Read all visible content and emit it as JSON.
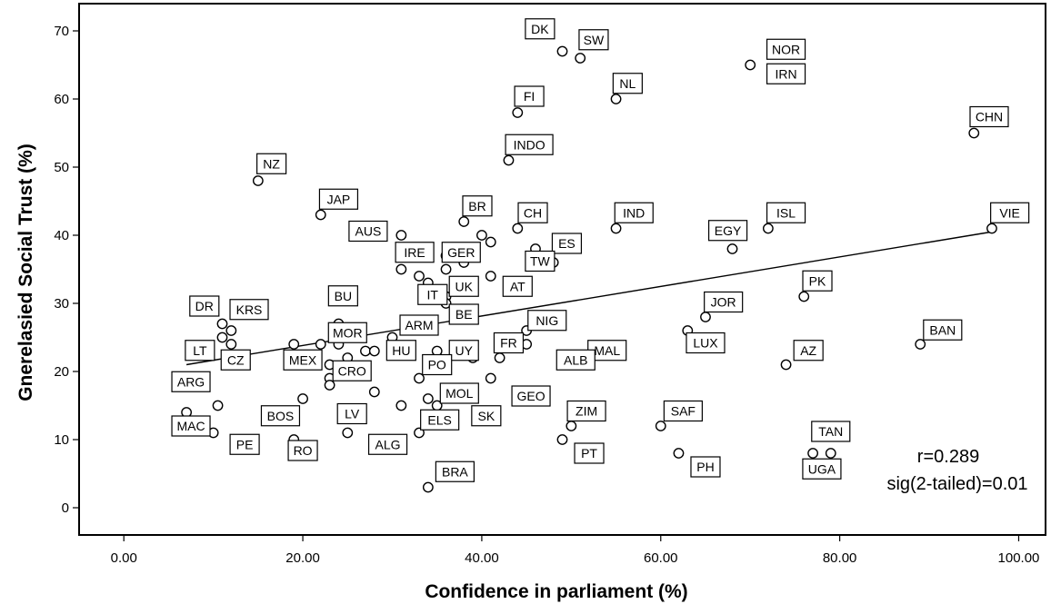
{
  "chart_data": {
    "type": "scatter",
    "xlabel": "Confidence  in parliament (%)",
    "ylabel": "Gnerelasied Social Trust (%)",
    "xlim": [
      -5,
      103
    ],
    "ylim": [
      -4,
      74
    ],
    "x_ticks": [
      0,
      20,
      40,
      60,
      80,
      100
    ],
    "x_tick_labels": [
      "0.00",
      "20.00",
      "40.00",
      "60.00",
      "80.00",
      "100.00"
    ],
    "y_ticks": [
      0,
      10,
      20,
      30,
      40,
      50,
      60,
      70
    ],
    "y_tick_labels": [
      "0",
      "10",
      "20",
      "30",
      "40",
      "50",
      "60",
      "70"
    ],
    "grid": false,
    "fit_line": {
      "x": [
        7,
        97
      ],
      "y": [
        21,
        40.5
      ]
    },
    "annotations": [
      "r=0.289",
      "sig(2-tailed)=0.01"
    ],
    "points": [
      {
        "x": 49,
        "y": 67
      },
      {
        "x": 51,
        "y": 66
      },
      {
        "x": 70,
        "y": 65
      },
      {
        "x": 55,
        "y": 60
      },
      {
        "x": 44,
        "y": 58
      },
      {
        "x": 95,
        "y": 55
      },
      {
        "x": 43,
        "y": 51
      },
      {
        "x": 15,
        "y": 48
      },
      {
        "x": 22,
        "y": 43
      },
      {
        "x": 38,
        "y": 42
      },
      {
        "x": 44,
        "y": 41
      },
      {
        "x": 55,
        "y": 41
      },
      {
        "x": 72,
        "y": 41
      },
      {
        "x": 97,
        "y": 41
      },
      {
        "x": 31,
        "y": 40
      },
      {
        "x": 40,
        "y": 40
      },
      {
        "x": 41,
        "y": 39
      },
      {
        "x": 68,
        "y": 38
      },
      {
        "x": 46,
        "y": 38
      },
      {
        "x": 36,
        "y": 37
      },
      {
        "x": 38,
        "y": 36
      },
      {
        "x": 48,
        "y": 36
      },
      {
        "x": 31,
        "y": 35
      },
      {
        "x": 36,
        "y": 35
      },
      {
        "x": 33,
        "y": 34
      },
      {
        "x": 41,
        "y": 34
      },
      {
        "x": 34,
        "y": 33
      },
      {
        "x": 36,
        "y": 31
      },
      {
        "x": 76,
        "y": 31
      },
      {
        "x": 36,
        "y": 30
      },
      {
        "x": 38,
        "y": 29
      },
      {
        "x": 65,
        "y": 28
      },
      {
        "x": 11,
        "y": 27
      },
      {
        "x": 24,
        "y": 27
      },
      {
        "x": 12,
        "y": 26
      },
      {
        "x": 45,
        "y": 26
      },
      {
        "x": 63,
        "y": 26
      },
      {
        "x": 11,
        "y": 25
      },
      {
        "x": 30,
        "y": 25
      },
      {
        "x": 12,
        "y": 24
      },
      {
        "x": 19,
        "y": 24
      },
      {
        "x": 22,
        "y": 24
      },
      {
        "x": 24,
        "y": 24
      },
      {
        "x": 45,
        "y": 24
      },
      {
        "x": 89,
        "y": 24
      },
      {
        "x": 27,
        "y": 23
      },
      {
        "x": 28,
        "y": 23
      },
      {
        "x": 35,
        "y": 23
      },
      {
        "x": 25,
        "y": 22
      },
      {
        "x": 39,
        "y": 22
      },
      {
        "x": 42,
        "y": 22
      },
      {
        "x": 23,
        "y": 21
      },
      {
        "x": 52,
        "y": 21
      },
      {
        "x": 74,
        "y": 21
      },
      {
        "x": 23,
        "y": 19
      },
      {
        "x": 33,
        "y": 19
      },
      {
        "x": 41,
        "y": 19
      },
      {
        "x": 23,
        "y": 18
      },
      {
        "x": 28,
        "y": 17
      },
      {
        "x": 20,
        "y": 16
      },
      {
        "x": 34,
        "y": 16
      },
      {
        "x": 10.5,
        "y": 15
      },
      {
        "x": 31,
        "y": 15
      },
      {
        "x": 35,
        "y": 15
      },
      {
        "x": 7,
        "y": 14
      },
      {
        "x": 50,
        "y": 12
      },
      {
        "x": 60,
        "y": 12
      },
      {
        "x": 10,
        "y": 11
      },
      {
        "x": 25,
        "y": 11
      },
      {
        "x": 33,
        "y": 11
      },
      {
        "x": 19,
        "y": 10
      },
      {
        "x": 49,
        "y": 10
      },
      {
        "x": 62,
        "y": 8
      },
      {
        "x": 77,
        "y": 8
      },
      {
        "x": 79,
        "y": 8
      },
      {
        "x": 34,
        "y": 3
      }
    ],
    "labels": [
      {
        "text": "DK",
        "x": 46.5,
        "y": 70.3
      },
      {
        "text": "SW",
        "x": 52.5,
        "y": 68.7
      },
      {
        "text": "NOR",
        "x": 74,
        "y": 67.3
      },
      {
        "text": "IRN",
        "x": 74,
        "y": 63.7
      },
      {
        "text": "NL",
        "x": 56.3,
        "y": 62.3
      },
      {
        "text": "FI",
        "x": 45.3,
        "y": 60.4
      },
      {
        "text": "CHN",
        "x": 96.7,
        "y": 57.4
      },
      {
        "text": "INDO",
        "x": 45.3,
        "y": 53.3
      },
      {
        "text": "NZ",
        "x": 16.5,
        "y": 50.5
      },
      {
        "text": "JAP",
        "x": 24,
        "y": 45.3
      },
      {
        "text": "BR",
        "x": 39.5,
        "y": 44.3
      },
      {
        "text": "CH",
        "x": 45.7,
        "y": 43.3
      },
      {
        "text": "IND",
        "x": 57,
        "y": 43.3
      },
      {
        "text": "EGY",
        "x": 67.5,
        "y": 40.7
      },
      {
        "text": "ISL",
        "x": 74,
        "y": 43.3
      },
      {
        "text": "VIE",
        "x": 99,
        "y": 43.3
      },
      {
        "text": "AUS",
        "x": 27.3,
        "y": 40.6
      },
      {
        "text": "ES",
        "x": 49.5,
        "y": 38.8
      },
      {
        "text": "IRE",
        "x": 32.5,
        "y": 37.5
      },
      {
        "text": "GER",
        "x": 37.7,
        "y": 37.5
      },
      {
        "text": "TW",
        "x": 46.5,
        "y": 36.2
      },
      {
        "text": "UK",
        "x": 38,
        "y": 32.5
      },
      {
        "text": "AT",
        "x": 44,
        "y": 32.5
      },
      {
        "text": "PK",
        "x": 77.5,
        "y": 33.3
      },
      {
        "text": "IT",
        "x": 34.5,
        "y": 31.3
      },
      {
        "text": "BU",
        "x": 24.5,
        "y": 31.1
      },
      {
        "text": "DR",
        "x": 9,
        "y": 29.6
      },
      {
        "text": "KRS",
        "x": 14,
        "y": 29.1
      },
      {
        "text": "BE",
        "x": 38,
        "y": 28.4
      },
      {
        "text": "JOR",
        "x": 67,
        "y": 30.2
      },
      {
        "text": "NIG",
        "x": 47.3,
        "y": 27.5
      },
      {
        "text": "ARM",
        "x": 33,
        "y": 26.8
      },
      {
        "text": "MOR",
        "x": 25,
        "y": 25.7
      },
      {
        "text": "BAN",
        "x": 91.5,
        "y": 26.1
      },
      {
        "text": "LUX",
        "x": 65,
        "y": 24.2
      },
      {
        "text": "FR",
        "x": 43,
        "y": 24.2
      },
      {
        "text": "LT",
        "x": 8.5,
        "y": 23.1
      },
      {
        "text": "HU",
        "x": 31,
        "y": 23.1
      },
      {
        "text": "UY",
        "x": 38,
        "y": 23.1
      },
      {
        "text": "MAL",
        "x": 54,
        "y": 23.1
      },
      {
        "text": "AZ",
        "x": 76.5,
        "y": 23.1
      },
      {
        "text": "CZ",
        "x": 12.5,
        "y": 21.7
      },
      {
        "text": "MEX",
        "x": 20,
        "y": 21.7
      },
      {
        "text": "ALB",
        "x": 50.5,
        "y": 21.7
      },
      {
        "text": "PO",
        "x": 35,
        "y": 21
      },
      {
        "text": "CRO",
        "x": 25.5,
        "y": 20.1
      },
      {
        "text": "ARG",
        "x": 7.5,
        "y": 18.5
      },
      {
        "text": "MOL",
        "x": 37.5,
        "y": 16.8
      },
      {
        "text": "GEO",
        "x": 45.5,
        "y": 16.4
      },
      {
        "text": "LV",
        "x": 25.5,
        "y": 13.8
      },
      {
        "text": "ZIM",
        "x": 51.7,
        "y": 14.2
      },
      {
        "text": "SAF",
        "x": 62.5,
        "y": 14.2
      },
      {
        "text": "BOS",
        "x": 17.5,
        "y": 13.5
      },
      {
        "text": "SK",
        "x": 40.5,
        "y": 13.5
      },
      {
        "text": "ELS",
        "x": 35.3,
        "y": 12.9
      },
      {
        "text": "MAC",
        "x": 7.5,
        "y": 12
      },
      {
        "text": "TAN",
        "x": 79,
        "y": 11.2
      },
      {
        "text": "PE",
        "x": 13.5,
        "y": 9.3
      },
      {
        "text": "ALG",
        "x": 29.5,
        "y": 9.3
      },
      {
        "text": "RO",
        "x": 20,
        "y": 8.4
      },
      {
        "text": "PT",
        "x": 52,
        "y": 8
      },
      {
        "text": "PH",
        "x": 65,
        "y": 6
      },
      {
        "text": "UGA",
        "x": 78,
        "y": 5.7
      },
      {
        "text": "BRA",
        "x": 37,
        "y": 5.3
      }
    ]
  }
}
